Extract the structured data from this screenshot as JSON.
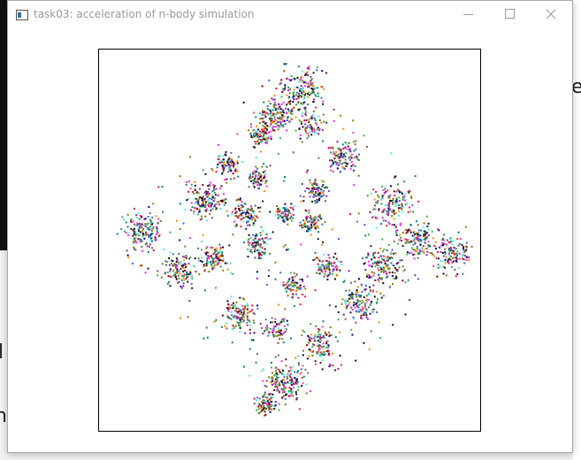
{
  "window": {
    "title": "task03: acceleration of n-body simulation"
  },
  "background": {
    "fragments": [
      "e",
      "l",
      "h"
    ]
  }
}
